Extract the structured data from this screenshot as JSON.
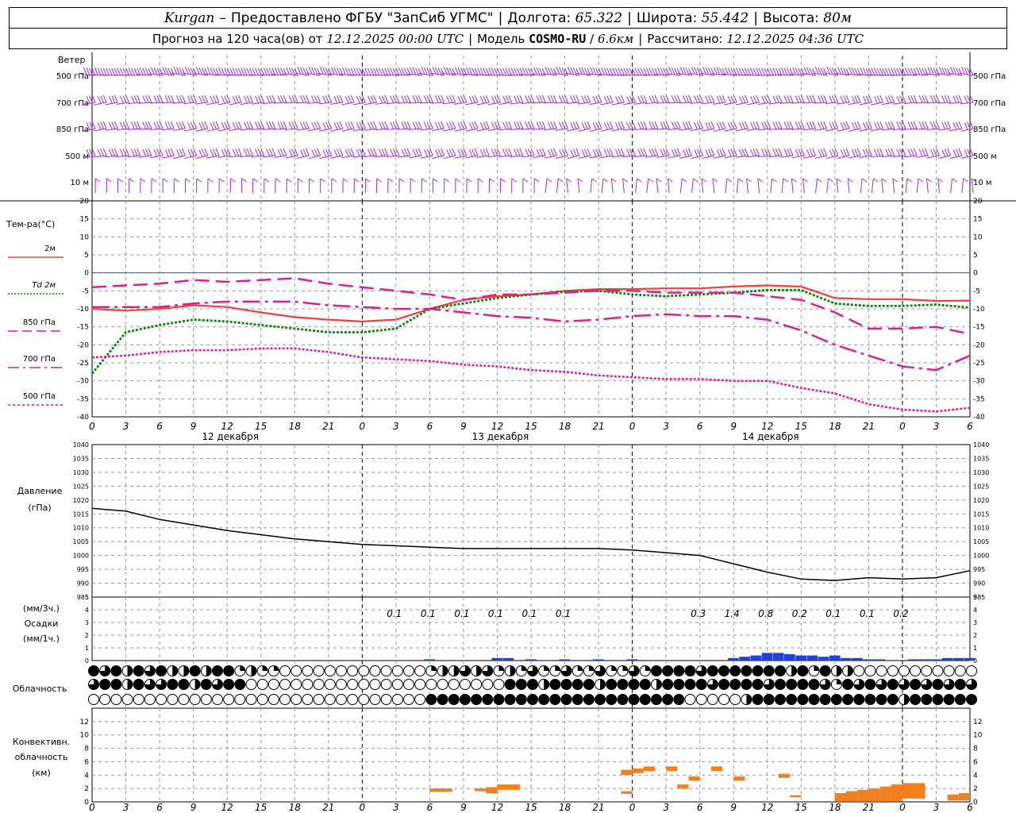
{
  "header": {
    "station": "Kurgan",
    "provider": "Предоставлено ФГБУ \"ЗапСиб УГМС\"",
    "lon_label": "Долгота:",
    "lon": "65.322",
    "lat_label": "Широта:",
    "lat": "55.442",
    "alt_label": "Высота:",
    "alt": "80м",
    "forecast_prefix": "Прогноз на 120 часа(ов) от",
    "forecast_time": "12.12.2025 00:00 UTC",
    "model_label": "Модель",
    "model": "COSMO-RU",
    "resolution": "6.6км",
    "computed_label": "Рассчитано:",
    "computed": "12.12.2025 04:36 UTC"
  },
  "colors": {
    "wind": "#9b30d0",
    "t2m": "#f04040",
    "td2m": "#108010",
    "t850": "#e0208a",
    "t700": "#e0208a",
    "t500": "#e0208a",
    "precip": "#2040e0",
    "convective": "#f08020",
    "pressure": "#000000",
    "grid": "#999999"
  },
  "chart_data": [
    {
      "type": "wind_barbs",
      "title": "Ветер",
      "levels": [
        "500 гПа",
        "700 гПа",
        "850 гПа",
        "500 м",
        "10 м"
      ]
    },
    {
      "type": "line",
      "title": "Тем-ра(°C)",
      "ylim": [
        -40,
        20
      ],
      "yticks": [
        -40,
        -35,
        -30,
        -25,
        -20,
        -15,
        -10,
        -5,
        0,
        5,
        10,
        15,
        20
      ],
      "x_hours": [
        0,
        3,
        6,
        9,
        12,
        15,
        18,
        21,
        24,
        27,
        30,
        33,
        36,
        39,
        42,
        45,
        48,
        51,
        54,
        57,
        60,
        63,
        66,
        69,
        72,
        75,
        78
      ],
      "x_tick_labels": [
        "0",
        "3",
        "6",
        "9",
        "12",
        "15",
        "18",
        "21",
        "0",
        "3",
        "6",
        "9",
        "12",
        "15",
        "18",
        "21",
        "0",
        "3",
        "6",
        "9",
        "12",
        "15",
        "18",
        "21",
        "0",
        "3",
        "6"
      ],
      "day_labels": [
        "12 декабря",
        "13 декабря",
        "14 декабря"
      ],
      "series": [
        {
          "name": "2м",
          "values": [
            -10,
            -10.5,
            -10,
            -9,
            -9.5,
            -11,
            -12.3,
            -13,
            -13.5,
            -13,
            -10,
            -7.5,
            -6.5,
            -6,
            -5,
            -4.5,
            -4.5,
            -4.3,
            -4.3,
            -3.8,
            -3.5,
            -3.8,
            -7,
            -7.3,
            -7.3,
            -7.8,
            -7.7
          ]
        },
        {
          "name": "Td 2м",
          "values": [
            -28,
            -16.5,
            -14.5,
            -13,
            -13.5,
            -14.5,
            -15.5,
            -16.5,
            -16.5,
            -15.5,
            -10,
            -8.5,
            -7,
            -6,
            -5.3,
            -5,
            -6,
            -6.5,
            -6,
            -5.5,
            -4.8,
            -4.8,
            -8.5,
            -9.2,
            -9.2,
            -8.8,
            -9.7
          ]
        },
        {
          "name": "850 гПа",
          "values": [
            -4,
            -3.5,
            -3,
            -2,
            -2.5,
            -2,
            -1.5,
            -3,
            -4,
            -5,
            -6,
            -7.5,
            -6,
            -6,
            -5.5,
            -5,
            -5,
            -5.5,
            -5.5,
            -5.5,
            -6.5,
            -7.5,
            -11,
            -15.5,
            -15.5,
            -15,
            -17
          ]
        },
        {
          "name": "700 гПа",
          "values": [
            -9.5,
            -9.5,
            -9.5,
            -8.5,
            -8,
            -8,
            -8,
            -9,
            -9.5,
            -10,
            -10,
            -11,
            -12,
            -12.5,
            -13.5,
            -13,
            -12,
            -11.5,
            -12,
            -12,
            -13,
            -16,
            -20,
            -23,
            -26,
            -27,
            -23
          ]
        },
        {
          "name": "500 гПа",
          "values": [
            -23.5,
            -23,
            -22,
            -21.5,
            -21.5,
            -21,
            -21,
            -22,
            -23.5,
            -24,
            -24.5,
            -25.5,
            -26,
            -27,
            -27.5,
            -28.5,
            -29,
            -29.5,
            -29.5,
            -30,
            -30,
            -32,
            -33.5,
            -36.5,
            -38,
            -38.5,
            -37.5
          ]
        }
      ]
    },
    {
      "type": "line",
      "title": "Давление",
      "ylabel": "(гПа)",
      "ylim": [
        985,
        1040
      ],
      "yticks": [
        985,
        990,
        995,
        1000,
        1005,
        1010,
        1015,
        1020,
        1025,
        1030,
        1035,
        1040
      ],
      "series": [
        {
          "name": "",
          "values": [
            1017,
            1016,
            1013,
            1011,
            1009,
            1007.5,
            1006,
            1005,
            1004,
            1003.5,
            1003,
            1002.5,
            1002.5,
            1002.5,
            1002.5,
            1002.5,
            1002,
            1001,
            1000,
            997,
            994,
            991.5,
            991,
            992,
            991.5,
            992,
            994.5
          ]
        }
      ]
    },
    {
      "type": "bar",
      "title": "Осадки",
      "ylabel_top": "(мм/3ч.)",
      "ylabel_bottom": "(мм/1ч.)",
      "ylim": [
        0,
        5
      ],
      "yticks": [
        0,
        1,
        2,
        3,
        4,
        5
      ],
      "labels": [
        {
          "hour": 27,
          "text": "0.1"
        },
        {
          "hour": 30,
          "text": "0.1"
        },
        {
          "hour": 33,
          "text": "0.1"
        },
        {
          "hour": 36,
          "text": "0.1"
        },
        {
          "hour": 39,
          "text": "0.1"
        },
        {
          "hour": 42,
          "text": "0.1"
        },
        {
          "hour": 54,
          "text": "0.3"
        },
        {
          "hour": 57,
          "text": "1.4"
        },
        {
          "hour": 60,
          "text": "0.8"
        },
        {
          "hour": 63,
          "text": "0.2"
        },
        {
          "hour": 66,
          "text": "0.1"
        },
        {
          "hour": 69,
          "text": "0.1"
        },
        {
          "hour": 72,
          "text": "0.2"
        }
      ],
      "hourly_bars": [
        {
          "hour": 30,
          "value": 0.1
        },
        {
          "hour": 36,
          "value": 0.2
        },
        {
          "hour": 37,
          "value": 0.2
        },
        {
          "hour": 39,
          "value": 0.1
        },
        {
          "hour": 42,
          "value": 0.1
        },
        {
          "hour": 45,
          "value": 0.1
        },
        {
          "hour": 48,
          "value": 0.1
        },
        {
          "hour": 57,
          "value": 0.2
        },
        {
          "hour": 58,
          "value": 0.3
        },
        {
          "hour": 59,
          "value": 0.4
        },
        {
          "hour": 60,
          "value": 0.6
        },
        {
          "hour": 61,
          "value": 0.6
        },
        {
          "hour": 62,
          "value": 0.5
        },
        {
          "hour": 63,
          "value": 0.4
        },
        {
          "hour": 64,
          "value": 0.4
        },
        {
          "hour": 65,
          "value": 0.3
        },
        {
          "hour": 66,
          "value": 0.4
        },
        {
          "hour": 67,
          "value": 0.2
        },
        {
          "hour": 68,
          "value": 0.2
        },
        {
          "hour": 69,
          "value": 0.1
        },
        {
          "hour": 70,
          "value": 0.1
        },
        {
          "hour": 73,
          "value": 0.1
        },
        {
          "hour": 74,
          "value": 0.1
        },
        {
          "hour": 75,
          "value": 0.1
        },
        {
          "hour": 76,
          "value": 0.2
        },
        {
          "hour": 77,
          "value": 0.2
        },
        {
          "hour": 78,
          "value": 0.2
        }
      ]
    },
    {
      "type": "cloud_symbols",
      "title": "Облачность",
      "rows": [
        "high",
        "middle",
        "low"
      ]
    },
    {
      "type": "bar",
      "title": "Конвективн. облачность",
      "ylabel": "(км)",
      "ylim": [
        0,
        14
      ],
      "yticks": [
        0,
        2,
        4,
        6,
        8,
        10,
        12
      ],
      "bars": [
        {
          "h0": 30,
          "h1": 32,
          "base": 1.5,
          "top": 2.0
        },
        {
          "h0": 34,
          "h1": 35,
          "base": 1.6,
          "top": 2.0
        },
        {
          "h0": 35,
          "h1": 36,
          "base": 1.3,
          "top": 2.2
        },
        {
          "h0": 36,
          "h1": 38,
          "base": 1.8,
          "top": 2.6
        },
        {
          "h0": 47,
          "h1": 48,
          "base": 4.0,
          "top": 4.8
        },
        {
          "h0": 47,
          "h1": 48,
          "base": 1.2,
          "top": 1.6
        },
        {
          "h0": 48,
          "h1": 49,
          "base": 4.3,
          "top": 5.0
        },
        {
          "h0": 49,
          "h1": 50,
          "base": 4.6,
          "top": 5.3
        },
        {
          "h0": 51,
          "h1": 52,
          "base": 4.6,
          "top": 5.3
        },
        {
          "h0": 52,
          "h1": 53,
          "base": 2.0,
          "top": 2.6
        },
        {
          "h0": 53,
          "h1": 54,
          "base": 3.2,
          "top": 3.8
        },
        {
          "h0": 55,
          "h1": 56,
          "base": 4.6,
          "top": 5.3
        },
        {
          "h0": 57,
          "h1": 58,
          "base": 3.2,
          "top": 3.8
        },
        {
          "h0": 61,
          "h1": 62,
          "base": 3.6,
          "top": 4.2
        },
        {
          "h0": 62,
          "h1": 63,
          "base": 0.7,
          "top": 1.0
        },
        {
          "h0": 66,
          "h1": 67,
          "base": 0.1,
          "top": 1.3
        },
        {
          "h0": 67,
          "h1": 68,
          "base": 0.1,
          "top": 1.6
        },
        {
          "h0": 68,
          "h1": 69,
          "base": 0.1,
          "top": 1.8
        },
        {
          "h0": 69,
          "h1": 70,
          "base": 0.1,
          "top": 2.0
        },
        {
          "h0": 70,
          "h1": 71,
          "base": 0.1,
          "top": 2.3
        },
        {
          "h0": 71,
          "h1": 72,
          "base": 0.1,
          "top": 2.6
        },
        {
          "h0": 72,
          "h1": 74,
          "base": 0.5,
          "top": 2.8
        },
        {
          "h0": 76,
          "h1": 77,
          "base": 0.2,
          "top": 1.1
        },
        {
          "h0": 77,
          "h1": 78,
          "base": 0.2,
          "top": 1.3
        }
      ]
    }
  ]
}
